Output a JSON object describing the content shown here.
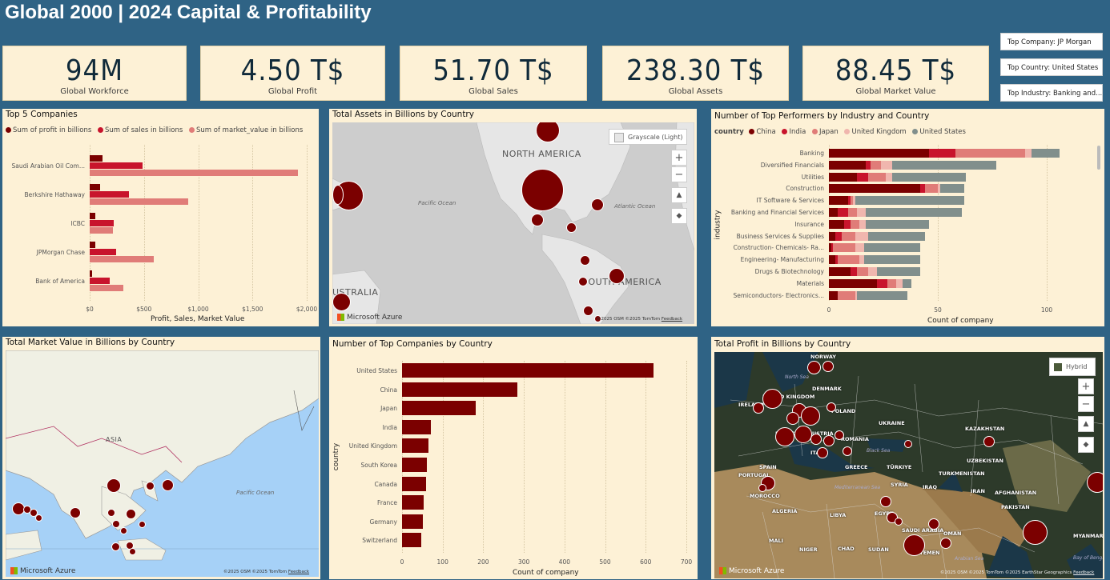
{
  "title": "Global 2000 | 2024 Capital & Profitability",
  "kpis": [
    {
      "value": "94M",
      "label": "Global Workforce"
    },
    {
      "value": "4.50 T$",
      "label": "Global Profit"
    },
    {
      "value": "51.70 T$",
      "label": "Global Sales"
    },
    {
      "value": "238.30 T$",
      "label": "Global Assets"
    },
    {
      "value": "88.45 T$",
      "label": "Global Market Value"
    }
  ],
  "side_cards": [
    "Top Company: JP Morgan",
    "Top Country: United States",
    "Top Industry: Banking and..."
  ],
  "colors": {
    "profit": "#7b0000",
    "sales": "#c8142c",
    "market_value": "#e07c78",
    "china": "#7b0000",
    "india": "#c8142c",
    "japan": "#e07c78",
    "uk": "#f0b6ae",
    "us": "#818f8c"
  },
  "top5": {
    "title": "Top 5 Companies",
    "legend": [
      "Sum of profit in billions",
      "Sum of sales in billions",
      "Sum of market_value in billions"
    ],
    "xlabel": "Profit, Sales, Market Value",
    "ticks": [
      "$0",
      "$500",
      "$1,000",
      "$1,500",
      "$2,000"
    ]
  },
  "assets_map": {
    "title": "Total Assets in Billions by Country",
    "style_button": "Grayscale (Light)",
    "labels": [
      "NORTH AMERICA",
      "SOUTH AMERICA",
      "USTRALIA"
    ],
    "oceans": [
      "Pacific Ocean",
      "Atlantic Ocean"
    ],
    "brand": "Microsoft Azure",
    "credit": "©2025 OSM ©2025 TomTom",
    "feedback": "Feedback"
  },
  "performers": {
    "title": "Number of Top Performers by Industry and Country",
    "legend_title": "country",
    "legend": [
      "China",
      "India",
      "Japan",
      "United Kingdom",
      "United States"
    ],
    "ylabel": "industry",
    "xlabel": "Count of company",
    "ticks": [
      "0",
      "50",
      "100"
    ]
  },
  "market_map": {
    "title": "Total Market Value in Billions by Country",
    "labels": [
      "ASIA"
    ],
    "oceans": [
      "Pacific Ocean"
    ],
    "brand": "Microsoft Azure",
    "credit": "©2025 OSM ©2025 TomTom",
    "feedback": "Feedback"
  },
  "countries_chart": {
    "title": "Number of Top Companies by Country",
    "ylabel": "country",
    "xlabel": "Count of company",
    "ticks": [
      "0",
      "100",
      "200",
      "300",
      "400",
      "500",
      "600",
      "700"
    ]
  },
  "profit_map": {
    "title": "Total Profit in Billions by Country",
    "style_button": "Hybrid",
    "labels": [
      "NORWAY",
      "DENMARK",
      "UNITED KINGDOM",
      "IRELAND",
      "POLAND",
      "UKRAINE",
      "FRANCE",
      "AUSTRIA",
      "ROMANIA",
      "ITALY",
      "SPAIN",
      "PORTUGAL",
      "GREECE",
      "TÜRKIYE",
      "SYRIA",
      "IRAQ",
      "IRAN",
      "MOROCCO",
      "ALGERIA",
      "LIBYA",
      "EGYPT",
      "SAUDI ARABIA",
      "OMAN",
      "YEMEN",
      "MALI",
      "NIGER",
      "CHAD",
      "SUDAN",
      "KAZAKHSTAN",
      "UZBEKISTAN",
      "TURKMENISTAN",
      "AFGHANISTAN",
      "PAKISTAN",
      "INDIA",
      "MYANMAR"
    ],
    "oceans": [
      "North Sea",
      "Black Sea",
      "Mediterranean Sea",
      "Arabian Sea",
      "Bay of Bengal"
    ],
    "brand": "Microsoft Azure",
    "credit": "©2025 OSM ©2025 TomTom ©2025 EarthStar Geographics",
    "feedback": "Feedback"
  },
  "chart_data": [
    {
      "type": "bar",
      "title": "Top 5 Companies",
      "orientation": "horizontal",
      "categories": [
        "Saudi Arabian Oil Com...",
        "Berkshire Hathaway",
        "ICBC",
        "JPMorgan Chase",
        "Bank of America"
      ],
      "series": [
        {
          "name": "Sum of profit in billions",
          "values": [
            121,
            96,
            55,
            50,
            25
          ]
        },
        {
          "name": "Sum of sales in billions",
          "values": [
            490,
            364,
            224,
            240,
            185
          ]
        },
        {
          "name": "Sum of market_value in billions",
          "values": [
            1920,
            905,
            216,
            590,
            310
          ]
        }
      ],
      "xlabel": "Profit, Sales, Market Value",
      "xlim": [
        0,
        2000
      ],
      "legend": "top"
    },
    {
      "type": "bar",
      "title": "Number of Top Performers by Industry and Country",
      "orientation": "horizontal",
      "stacked": true,
      "categories": [
        "Banking",
        "Diversified Financials",
        "Utilities",
        "Construction",
        "IT Software & Services",
        "Banking and Financial Services",
        "Insurance",
        "Business Services & Supplies",
        "Construction- Chemicals- Ra...",
        "Engineering- Manufacturing",
        "Drugs & Biotechnology",
        "Materials",
        "Semiconductors- Electronics..."
      ],
      "series": [
        {
          "name": "China",
          "values": [
            46,
            17,
            13,
            42,
            9,
            4,
            7,
            3,
            1,
            3,
            10,
            22,
            4
          ]
        },
        {
          "name": "India",
          "values": [
            12,
            2,
            5,
            2,
            1,
            5,
            3,
            3,
            1,
            1,
            3,
            5,
            0
          ]
        },
        {
          "name": "Japan",
          "values": [
            32,
            5,
            8,
            6,
            1,
            4,
            4,
            6,
            10,
            10,
            5,
            4,
            8
          ]
        },
        {
          "name": "United Kingdom",
          "values": [
            3,
            5,
            3,
            1,
            1,
            4,
            3,
            6,
            4,
            2,
            4,
            3,
            1
          ]
        },
        {
          "name": "United States",
          "values": [
            13,
            48,
            34,
            11,
            50,
            44,
            29,
            26,
            26,
            26,
            20,
            4,
            23
          ]
        }
      ],
      "xlabel": "Count of company",
      "ylabel": "industry",
      "xlim": [
        0,
        120
      ],
      "legend": "top"
    },
    {
      "type": "bar",
      "title": "Number of Top Companies by Country",
      "orientation": "horizontal",
      "categories": [
        "United States",
        "China",
        "Japan",
        "India",
        "United Kingdom",
        "South Korea",
        "Canada",
        "France",
        "Germany",
        "Switzerland"
      ],
      "values": [
        620,
        283,
        182,
        70,
        65,
        62,
        60,
        53,
        52,
        47
      ],
      "xlabel": "Count of company",
      "ylabel": "country",
      "xlim": [
        0,
        700
      ]
    }
  ]
}
